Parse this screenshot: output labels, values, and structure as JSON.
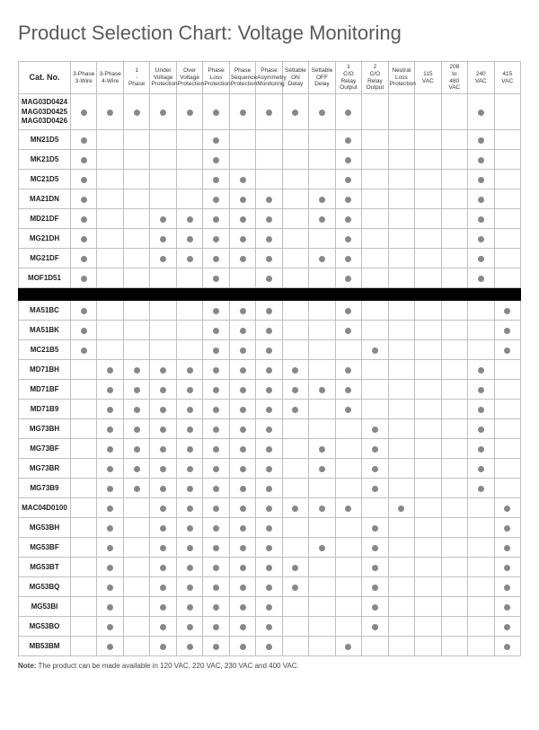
{
  "title": "Product Selection Chart: Voltage Monitoring",
  "note_label": "Note:",
  "note_text": " The product can be made available in 120 VAC, 220 VAC, 230 VAC and 400 VAC.",
  "columns": [
    "Cat. No.",
    "3-Phase 3-Wire",
    "3-Phase 4-Wire",
    "1 - Phase",
    "Under Voltage Protection",
    "Over Voltage Protection",
    "Phase Loss Protection",
    "Phase Sequence Protection",
    "Phase Asymmetry Monitoring",
    "Settable ON Delay",
    "Settable OFF Delay",
    "1 C/O Relay Output",
    "2 C/O Relay Output",
    "Neutral Loss Protection",
    "115 VAC",
    "208 to 480 VAC",
    "240 VAC",
    "415 VAC"
  ],
  "rows": [
    {
      "cat": "MAG03D0424 MAG03D0425 MAG03D0426",
      "f": [
        1,
        1,
        1,
        1,
        1,
        1,
        1,
        1,
        1,
        1,
        1,
        0,
        0,
        0,
        0,
        1,
        0
      ]
    },
    {
      "cat": "MN21D5",
      "f": [
        1,
        0,
        0,
        0,
        0,
        1,
        0,
        0,
        0,
        0,
        1,
        0,
        0,
        0,
        0,
        1,
        0
      ]
    },
    {
      "cat": "MK21D5",
      "f": [
        1,
        0,
        0,
        0,
        0,
        1,
        0,
        0,
        0,
        0,
        1,
        0,
        0,
        0,
        0,
        1,
        0
      ]
    },
    {
      "cat": "MC21D5",
      "f": [
        1,
        0,
        0,
        0,
        0,
        1,
        1,
        0,
        0,
        0,
        1,
        0,
        0,
        0,
        0,
        1,
        0
      ]
    },
    {
      "cat": "MA21DN",
      "f": [
        1,
        0,
        0,
        0,
        0,
        1,
        1,
        1,
        0,
        1,
        1,
        0,
        0,
        0,
        0,
        1,
        0
      ]
    },
    {
      "cat": "MD21DF",
      "f": [
        1,
        0,
        0,
        1,
        1,
        1,
        1,
        1,
        0,
        1,
        1,
        0,
        0,
        0,
        0,
        1,
        0
      ]
    },
    {
      "cat": "MG21DH",
      "f": [
        1,
        0,
        0,
        1,
        1,
        1,
        1,
        1,
        0,
        0,
        1,
        0,
        0,
        0,
        0,
        1,
        0
      ]
    },
    {
      "cat": "MG21DF",
      "f": [
        1,
        0,
        0,
        1,
        1,
        1,
        1,
        1,
        0,
        1,
        1,
        0,
        0,
        0,
        0,
        1,
        0
      ]
    },
    {
      "cat": "MOF1D51",
      "f": [
        1,
        0,
        0,
        0,
        0,
        1,
        0,
        1,
        0,
        0,
        1,
        0,
        0,
        0,
        0,
        1,
        0
      ]
    },
    {
      "black": true
    },
    {
      "cat": "MA51BC",
      "f": [
        1,
        0,
        0,
        0,
        0,
        1,
        1,
        1,
        0,
        0,
        1,
        0,
        0,
        0,
        0,
        0,
        1
      ]
    },
    {
      "cat": "MA51BK",
      "f": [
        1,
        0,
        0,
        0,
        0,
        1,
        1,
        1,
        0,
        0,
        1,
        0,
        0,
        0,
        0,
        0,
        1
      ]
    },
    {
      "cat": "MC21B5",
      "f": [
        1,
        0,
        0,
        0,
        0,
        1,
        1,
        1,
        0,
        0,
        0,
        1,
        0,
        0,
        0,
        0,
        1
      ]
    },
    {
      "cat": "MD71BH",
      "f": [
        0,
        1,
        1,
        1,
        1,
        1,
        1,
        1,
        1,
        0,
        1,
        0,
        0,
        0,
        0,
        1,
        0
      ]
    },
    {
      "cat": "MD71BF",
      "f": [
        0,
        1,
        1,
        1,
        1,
        1,
        1,
        1,
        1,
        1,
        1,
        0,
        0,
        0,
        0,
        1,
        0
      ]
    },
    {
      "cat": "MD71B9",
      "f": [
        0,
        1,
        1,
        1,
        1,
        1,
        1,
        1,
        1,
        0,
        1,
        0,
        0,
        0,
        0,
        1,
        0
      ]
    },
    {
      "cat": "MG73BH",
      "f": [
        0,
        1,
        1,
        1,
        1,
        1,
        1,
        1,
        0,
        0,
        0,
        1,
        0,
        0,
        0,
        1,
        0
      ]
    },
    {
      "cat": "MG73BF",
      "f": [
        0,
        1,
        1,
        1,
        1,
        1,
        1,
        1,
        0,
        1,
        0,
        1,
        0,
        0,
        0,
        1,
        0
      ]
    },
    {
      "cat": "MG73BR",
      "f": [
        0,
        1,
        1,
        1,
        1,
        1,
        1,
        1,
        0,
        1,
        0,
        1,
        0,
        0,
        0,
        1,
        0
      ]
    },
    {
      "cat": "MG73B9",
      "f": [
        0,
        1,
        1,
        1,
        1,
        1,
        1,
        1,
        0,
        0,
        0,
        1,
        0,
        0,
        0,
        1,
        0
      ]
    },
    {
      "cat": "MAC04D0100",
      "f": [
        0,
        1,
        0,
        1,
        1,
        1,
        1,
        1,
        1,
        1,
        1,
        0,
        1,
        0,
        0,
        0,
        1
      ]
    },
    {
      "cat": "MG53BH",
      "f": [
        0,
        1,
        0,
        1,
        1,
        1,
        1,
        1,
        0,
        0,
        0,
        1,
        0,
        0,
        0,
        0,
        1
      ]
    },
    {
      "cat": "MG53BF",
      "f": [
        0,
        1,
        0,
        1,
        1,
        1,
        1,
        1,
        0,
        1,
        0,
        1,
        0,
        0,
        0,
        0,
        1
      ]
    },
    {
      "cat": "MG53BT",
      "f": [
        0,
        1,
        0,
        1,
        1,
        1,
        1,
        1,
        1,
        0,
        0,
        1,
        0,
        0,
        0,
        0,
        1
      ]
    },
    {
      "cat": "MG53BQ",
      "f": [
        0,
        1,
        0,
        1,
        1,
        1,
        1,
        1,
        1,
        0,
        0,
        1,
        0,
        0,
        0,
        0,
        1
      ]
    },
    {
      "cat": "MG53BI",
      "f": [
        0,
        1,
        0,
        1,
        1,
        1,
        1,
        1,
        0,
        0,
        0,
        1,
        0,
        0,
        0,
        0,
        1
      ]
    },
    {
      "cat": "MG53BO",
      "f": [
        0,
        1,
        0,
        1,
        1,
        1,
        1,
        1,
        0,
        0,
        0,
        1,
        0,
        0,
        0,
        0,
        1
      ]
    },
    {
      "cat": "MB53BM",
      "f": [
        0,
        1,
        0,
        1,
        1,
        1,
        1,
        1,
        0,
        0,
        1,
        0,
        0,
        0,
        0,
        0,
        1
      ]
    }
  ],
  "dot_color": "#888888"
}
